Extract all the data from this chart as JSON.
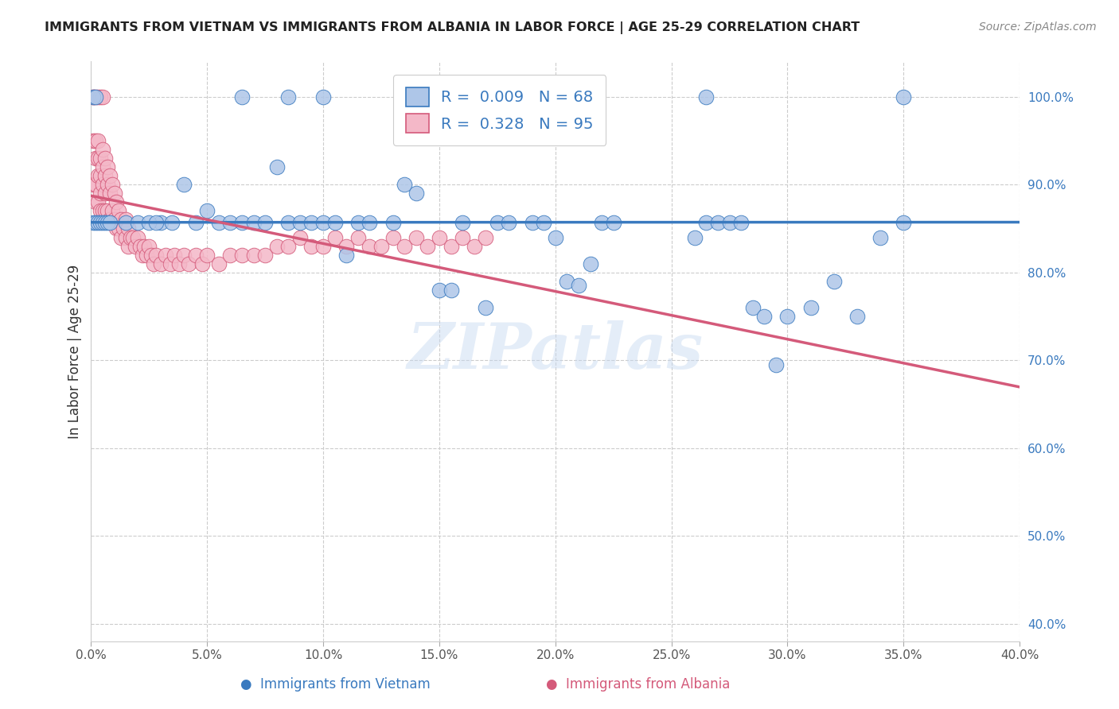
{
  "title": "IMMIGRANTS FROM VIETNAM VS IMMIGRANTS FROM ALBANIA IN LABOR FORCE | AGE 25-29 CORRELATION CHART",
  "source": "Source: ZipAtlas.com",
  "ylabel": "In Labor Force | Age 25-29",
  "xlim": [
    0.0,
    0.4
  ],
  "ylim": [
    0.84,
    1.03
  ],
  "xtick_vals": [
    0.0,
    0.05,
    0.1,
    0.15,
    0.2,
    0.25,
    0.3,
    0.35,
    0.4
  ],
  "xtick_labels": [
    "0.0%",
    "5.0%",
    "10.0%",
    "15.0%",
    "20.0%",
    "25.0%",
    "30.0%",
    "35.0%",
    "40.0%"
  ],
  "ytick_vals": [
    0.4,
    0.5,
    0.6,
    0.7,
    0.8,
    0.9,
    1.0
  ],
  "ytick_labels": [
    "40.0%",
    "50.0%",
    "60.0%",
    "70.0%",
    "80.0%",
    "90.0%",
    "100.0%"
  ],
  "watermark": "ZIPatlas",
  "vietnam_color": "#aec6e8",
  "vietnam_edge_color": "#3a7abf",
  "albania_color": "#f4b8c8",
  "albania_edge_color": "#d45a7a",
  "trend_vietnam_color": "#3a7abf",
  "trend_albania_color": "#d45a7a",
  "R_vietnam": 0.009,
  "N_vietnam": 68,
  "R_albania": 0.328,
  "N_albania": 95,
  "grid_color": "#cccccc",
  "title_color": "#222222",
  "source_color": "#888888",
  "axis_label_color": "#333333",
  "tick_color_y": "#3a7abf",
  "tick_color_x": "#555555",
  "legend_label_color": "#3a7abf"
}
